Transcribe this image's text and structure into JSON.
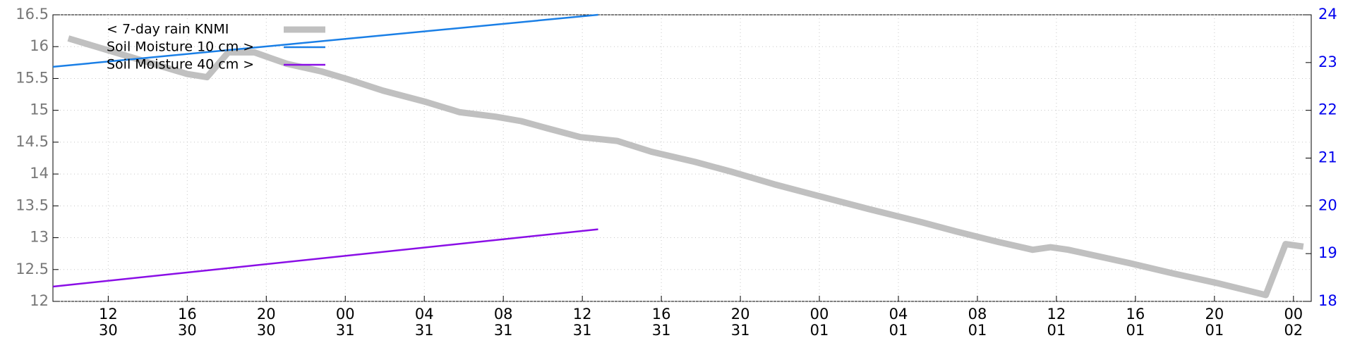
{
  "chart_data": {
    "type": "line",
    "xlim": [
      9.2,
      72.9
    ],
    "xticks": [
      {
        "value": 12,
        "label": "12\n30"
      },
      {
        "value": 16,
        "label": "16\n30"
      },
      {
        "value": 20,
        "label": "20\n30"
      },
      {
        "value": 24,
        "label": "00\n31"
      },
      {
        "value": 28,
        "label": "04\n31"
      },
      {
        "value": 32,
        "label": "08\n31"
      },
      {
        "value": 36,
        "label": "12\n31"
      },
      {
        "value": 40,
        "label": "16\n31"
      },
      {
        "value": 44,
        "label": "20\n31"
      },
      {
        "value": 48,
        "label": "00\n01"
      },
      {
        "value": 52,
        "label": "04\n01"
      },
      {
        "value": 56,
        "label": "08\n01"
      },
      {
        "value": 60,
        "label": "12\n01"
      },
      {
        "value": 64,
        "label": "16\n01"
      },
      {
        "value": 68,
        "label": "20\n01"
      },
      {
        "value": 72,
        "label": "00\n02"
      }
    ],
    "ylim": [
      12,
      16.5
    ],
    "yticks": [
      12,
      12.5,
      13,
      13.5,
      14,
      14.5,
      15,
      15.5,
      16,
      16.5
    ],
    "y2lim": [
      18,
      24
    ],
    "y2ticks": [
      18,
      19,
      20,
      21,
      22,
      23,
      24
    ],
    "grid": true,
    "legend": "top-left",
    "series": [
      {
        "name": "< 7-day rain KNMI",
        "color": "#c0c0c0",
        "width": 9,
        "x": [
          9.98,
          16,
          17,
          18.07,
          19.4,
          21.05,
          22.8,
          24.1,
          25.9,
          28.1,
          29.8,
          31.6,
          32.9,
          34.2,
          35.9,
          37.76,
          39.5,
          41.7,
          43.5,
          45.7,
          47.9,
          50.5,
          53.2,
          54.9,
          57.1,
          58.8,
          59.7,
          60.6,
          63.7,
          65.9,
          68.1,
          70.6,
          71.6,
          72.5
        ],
        "values": [
          16.13,
          15.57,
          15.52,
          15.91,
          15.91,
          15.73,
          15.61,
          15.49,
          15.31,
          15.13,
          14.97,
          14.9,
          14.83,
          14.72,
          14.58,
          14.52,
          14.35,
          14.19,
          14.04,
          13.84,
          13.66,
          13.45,
          13.24,
          13.1,
          12.93,
          12.81,
          12.85,
          12.81,
          12.6,
          12.44,
          12.29,
          12.1,
          12.9,
          12.86
        ]
      },
      {
        "name": "Soil Moisture 10 cm >",
        "color": "#1a7fe6",
        "width": 2.5,
        "axis": "y2",
        "x": [
          9.2,
          36.8
        ],
        "values": [
          22.91,
          24.0
        ]
      },
      {
        "name": "Soil Moisture 40 cm >",
        "color": "#8a0ee6",
        "width": 2.5,
        "axis": "y2",
        "x": [
          9.2,
          36.8
        ],
        "values": [
          18.31,
          19.51
        ]
      }
    ]
  }
}
